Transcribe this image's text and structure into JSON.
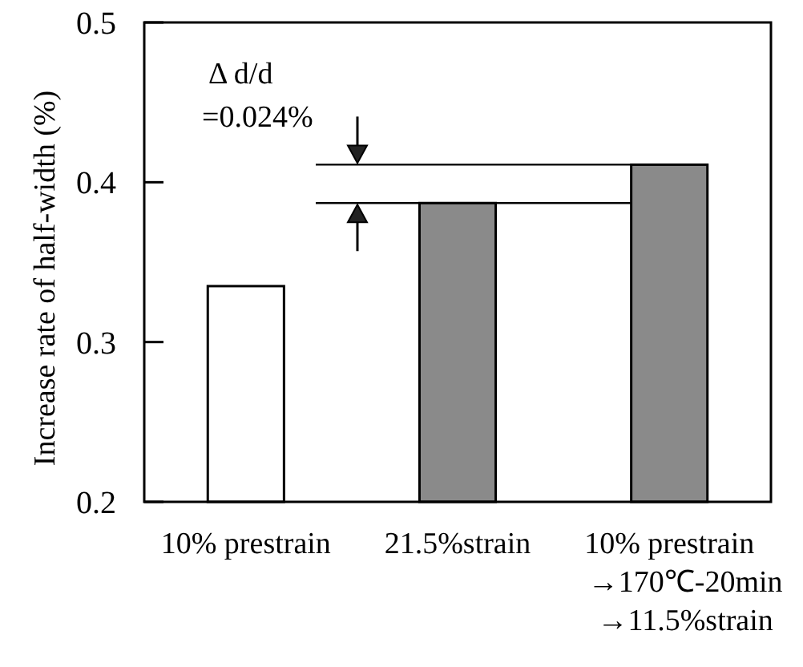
{
  "chart_data": {
    "type": "bar",
    "ylabel": "Increase rate of half-width (%)",
    "categories": [
      "10% prestrain",
      "21.5%strain",
      "10% prestrain\n→170℃-20min\n→11.5%strain"
    ],
    "values": [
      0.335,
      0.387,
      0.411
    ],
    "colors": [
      "#ffffff",
      "#8a8a8a",
      "#8a8a8a"
    ],
    "ylim": [
      0.2,
      0.5
    ],
    "yticks": [
      0.2,
      0.3,
      0.4,
      0.5
    ],
    "grid": false,
    "ref_lines": [
      {
        "axis": "y",
        "value": 0.387,
        "color": "#000000"
      },
      {
        "axis": "y",
        "value": 0.411,
        "color": "#000000"
      }
    ],
    "annotations": [
      "Δ d/d",
      "=0.024%"
    ]
  }
}
